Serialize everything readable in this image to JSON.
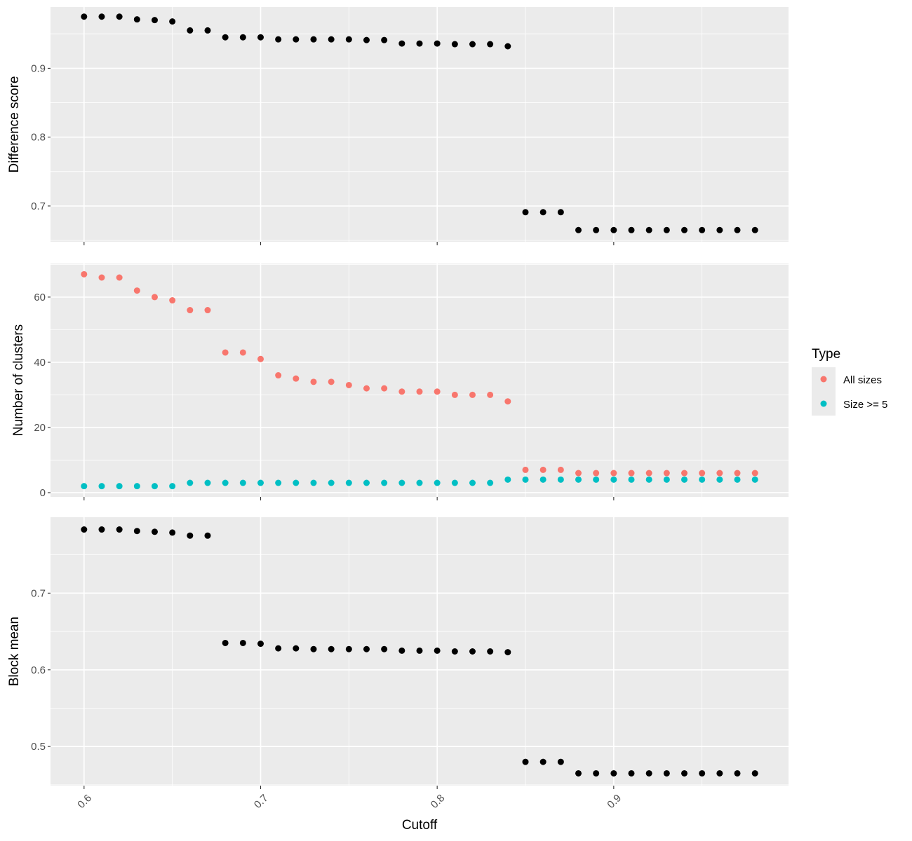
{
  "chart_data": {
    "type": "scatter",
    "xlabel": "Cutoff",
    "x_ticks": [
      "0.6",
      "0.7",
      "0.8",
      "0.9"
    ],
    "xlim": [
      0.581,
      0.999
    ],
    "x": [
      0.6,
      0.61,
      0.62,
      0.63,
      0.64,
      0.65,
      0.66,
      0.67,
      0.68,
      0.69,
      0.7,
      0.71,
      0.72,
      0.73,
      0.74,
      0.75,
      0.76,
      0.77,
      0.78,
      0.79,
      0.8,
      0.81,
      0.82,
      0.83,
      0.84,
      0.85,
      0.86,
      0.87,
      0.88,
      0.89,
      0.9,
      0.91,
      0.92,
      0.93,
      0.94,
      0.95,
      0.96,
      0.97,
      0.98
    ],
    "grid": true,
    "legend_position": "right",
    "legend": {
      "title": "Type",
      "items": [
        {
          "label": "All sizes",
          "color": "#F8766D"
        },
        {
          "label": "Size >= 5",
          "color": "#00BFC4"
        }
      ]
    },
    "panels": [
      {
        "ylabel": "Difference score",
        "ylim": [
          0.648,
          0.989
        ],
        "y_ticks": [
          "0.7",
          "0.8",
          "0.9"
        ],
        "series": [
          {
            "color": "#000000",
            "values": [
              0.975,
              0.975,
              0.975,
              0.971,
              0.97,
              0.968,
              0.955,
              0.955,
              0.945,
              0.945,
              0.945,
              0.942,
              0.942,
              0.942,
              0.942,
              0.942,
              0.941,
              0.941,
              0.936,
              0.936,
              0.936,
              0.935,
              0.935,
              0.935,
              0.932,
              0.691,
              0.691,
              0.691,
              0.665,
              0.665,
              0.665,
              0.665,
              0.665,
              0.665,
              0.665,
              0.665,
              0.665,
              0.665,
              0.665
            ]
          }
        ]
      },
      {
        "ylabel": "Number of clusters",
        "ylim": [
          -1.3,
          70.3
        ],
        "y_ticks": [
          "0",
          "20",
          "40",
          "60"
        ],
        "series": [
          {
            "name": "All sizes",
            "color": "#F8766D",
            "values": [
              67,
              66,
              66,
              62,
              60,
              59,
              56,
              56,
              43,
              43,
              41,
              36,
              35,
              34,
              34,
              33,
              32,
              32,
              31,
              31,
              31,
              30,
              30,
              30,
              28,
              7,
              7,
              7,
              6,
              6,
              6,
              6,
              6,
              6,
              6,
              6,
              6,
              6,
              6
            ]
          },
          {
            "name": "Size >= 5",
            "color": "#00BFC4",
            "values": [
              2,
              2,
              2,
              2,
              2,
              2,
              3,
              3,
              3,
              3,
              3,
              3,
              3,
              3,
              3,
              3,
              3,
              3,
              3,
              3,
              3,
              3,
              3,
              3,
              4,
              4,
              4,
              4,
              4,
              4,
              4,
              4,
              4,
              4,
              4,
              4,
              4,
              4,
              4
            ]
          }
        ]
      },
      {
        "ylabel": "Block mean",
        "ylim": [
          0.449,
          0.799
        ],
        "y_ticks": [
          "0.5",
          "0.6",
          "0.7"
        ],
        "series": [
          {
            "color": "#000000",
            "values": [
              0.783,
              0.783,
              0.783,
              0.781,
              0.78,
              0.779,
              0.775,
              0.775,
              0.635,
              0.635,
              0.634,
              0.628,
              0.628,
              0.627,
              0.627,
              0.627,
              0.627,
              0.627,
              0.625,
              0.625,
              0.625,
              0.624,
              0.624,
              0.624,
              0.623,
              0.48,
              0.48,
              0.48,
              0.465,
              0.465,
              0.465,
              0.465,
              0.465,
              0.465,
              0.465,
              0.465,
              0.465,
              0.465,
              0.465
            ]
          }
        ]
      }
    ]
  }
}
